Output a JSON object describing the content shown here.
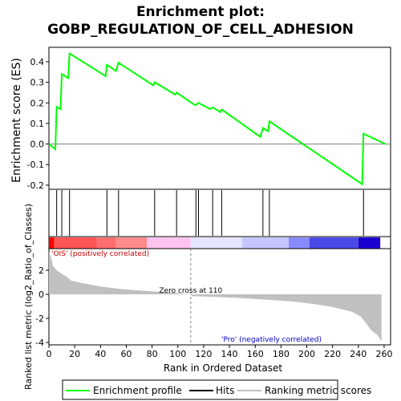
{
  "chart_data": {
    "type": "line",
    "title_line1": "Enrichment plot:",
    "title_line2": "GOBP_REGULATION_OF_CELL_ADHESION",
    "ylabel_top": "Enrichment score (ES)",
    "ylabel_bottom": "Ranked list metric (log2_Ratio_of_Classes)",
    "xlabel": "Rank in Ordered Dataset",
    "xlim": [
      0,
      265
    ],
    "x_ticks": [
      0,
      20,
      40,
      60,
      80,
      100,
      120,
      140,
      160,
      180,
      200,
      220,
      240,
      260
    ],
    "es_ylim": [
      -0.22,
      0.47
    ],
    "es_ticks": [
      -0.2,
      -0.1,
      0.0,
      0.1,
      0.2,
      0.3,
      0.4
    ],
    "es_tick_labels": [
      "-0.2",
      "-0.1",
      "0.0",
      "0.1",
      "0.2",
      "0.3",
      "0.4"
    ],
    "metric_ylim": [
      -4.2,
      3.8
    ],
    "metric_ticks": [
      -4,
      -2,
      0,
      2
    ],
    "metric_tick_labels": [
      "-4",
      "-2",
      "0",
      "2"
    ],
    "es_profile": [
      [
        0,
        0.0
      ],
      [
        5,
        -0.025
      ],
      [
        6,
        0.18
      ],
      [
        9,
        0.17
      ],
      [
        10,
        0.34
      ],
      [
        15,
        0.32
      ],
      [
        16,
        0.44
      ],
      [
        44,
        0.33
      ],
      [
        45,
        0.385
      ],
      [
        52,
        0.355
      ],
      [
        54,
        0.395
      ],
      [
        81,
        0.285
      ],
      [
        82,
        0.3
      ],
      [
        98,
        0.24
      ],
      [
        99,
        0.25
      ],
      [
        113,
        0.19
      ],
      [
        114,
        0.19
      ],
      [
        116,
        0.2
      ],
      [
        125,
        0.17
      ],
      [
        127,
        0.178
      ],
      [
        133,
        0.155
      ],
      [
        134,
        0.168
      ],
      [
        164,
        0.035
      ],
      [
        166,
        0.078
      ],
      [
        170,
        0.062
      ],
      [
        171,
        0.11
      ],
      [
        243,
        -0.195
      ],
      [
        244,
        0.05
      ],
      [
        261,
        0.0
      ]
    ],
    "hits": [
      6,
      10,
      16,
      45,
      54,
      82,
      99,
      114,
      116,
      127,
      134,
      166,
      171,
      244
    ],
    "metric_profile": [
      [
        0,
        3.5
      ],
      [
        2,
        3.0
      ],
      [
        3,
        2.4
      ],
      [
        6,
        2.0
      ],
      [
        10,
        1.7
      ],
      [
        14,
        1.45
      ],
      [
        17,
        1.15
      ],
      [
        25,
        0.95
      ],
      [
        40,
        0.65
      ],
      [
        55,
        0.45
      ],
      [
        70,
        0.32
      ],
      [
        85,
        0.22
      ],
      [
        100,
        0.1
      ],
      [
        110,
        0.0
      ],
      [
        111,
        -0.15
      ],
      [
        130,
        -0.22
      ],
      [
        150,
        -0.32
      ],
      [
        170,
        -0.45
      ],
      [
        190,
        -0.6
      ],
      [
        205,
        -0.8
      ],
      [
        220,
        -1.05
      ],
      [
        235,
        -1.45
      ],
      [
        242,
        -1.85
      ],
      [
        246,
        -2.4
      ],
      [
        250,
        -3.0
      ],
      [
        255,
        -3.4
      ],
      [
        258,
        -3.9
      ]
    ],
    "zero_cross_rank": 110,
    "zero_cross_label": "Zero cross at 110",
    "pos_label": "'OIS' (positively correlated)",
    "neg_label": "'Pro' (negatively correlated)",
    "legend": [
      "Enrichment profile",
      "Hits",
      "Ranking metric scores"
    ],
    "colors": {
      "es_line": "#00ff00",
      "hit": "#000000",
      "metric": "#c0c0c0",
      "pos_text": "#cc0000",
      "neg_text": "#0000cc",
      "zero_line": "#808080"
    },
    "heat_segments": [
      {
        "x0": 0,
        "x1": 4,
        "color": "#ff0000"
      },
      {
        "x0": 4,
        "x1": 37,
        "color": "#ff5555"
      },
      {
        "x0": 37,
        "x1": 52,
        "color": "#ff6e6e"
      },
      {
        "x0": 52,
        "x1": 76,
        "color": "#ff8a8a"
      },
      {
        "x0": 76,
        "x1": 110,
        "color": "#ffc3ef"
      },
      {
        "x0": 110,
        "x1": 150,
        "color": "#e4e4ff"
      },
      {
        "x0": 150,
        "x1": 186,
        "color": "#c6c6ff"
      },
      {
        "x0": 186,
        "x1": 202,
        "color": "#8a8aff"
      },
      {
        "x0": 202,
        "x1": 240,
        "color": "#4a4ae8"
      },
      {
        "x0": 240,
        "x1": 257,
        "color": "#1a00d0"
      }
    ]
  }
}
